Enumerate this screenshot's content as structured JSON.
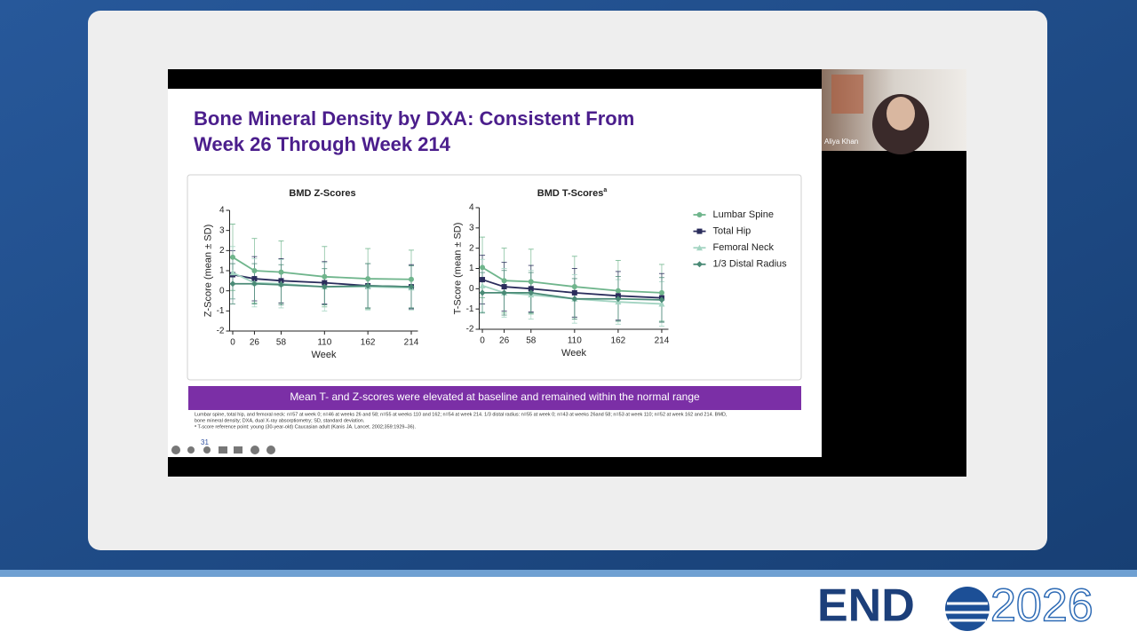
{
  "slide": {
    "title_lines": [
      "Bone Mineral Density by DXA: Consistent From",
      "Week 26 Through Week 214"
    ],
    "banner": "Mean T- and Z-scores were elevated at baseline and remained within the normal range",
    "footnotes": [
      "Lumbar spine, total hip, and femoral neck: n=57 at week 0; n=46 at weeks 26 and 58; n=55 at weeks 110 and 162; n=54 at week 214. 1/3 distal radius: n=55 at week 0; n=43 at weeks 26and 58; n=53 at week 110; n=52 at week 162 and 214. BMD,",
      "bone mineral density; DXA, dual X-ray absorptiometry; SD, standard deviation.",
      "ᵃ T-score reference point: young (30-year-old) Caucasian adult (Kanis JA. Lancet. 2002;359:1929–36)."
    ],
    "page_number": "31"
  },
  "speaker": {
    "name": "Aliya Khan"
  },
  "logo": {
    "left": "END",
    "right": "2026"
  },
  "chart_data": [
    {
      "type": "line",
      "title": "BMD Z-Scores",
      "xlabel": "Week",
      "ylabel": "Z-Score (mean ± SD)",
      "x": [
        0,
        26,
        58,
        110,
        162,
        214
      ],
      "xlim": [
        -8,
        222
      ],
      "xticks": [
        0,
        26,
        58,
        110,
        162,
        214
      ],
      "ylim": [
        -2,
        4
      ],
      "yticks": [
        -2,
        -1,
        0,
        1,
        2,
        3,
        4
      ],
      "series": [
        {
          "name": "Lumbar Spine",
          "color": "#6fb58c",
          "marker": "circle",
          "values": [
            1.67,
            1.0,
            0.93,
            0.7,
            0.6,
            0.57
          ],
          "errors": [
            1.65,
            1.6,
            1.55,
            1.5,
            1.5,
            1.45
          ]
        },
        {
          "name": "Total Hip",
          "color": "#2b2d5c",
          "marker": "square",
          "values": [
            0.8,
            0.6,
            0.5,
            0.4,
            0.25,
            0.2
          ],
          "errors": [
            1.2,
            1.1,
            1.1,
            1.05,
            1.1,
            1.1
          ]
        },
        {
          "name": "Femoral Neck",
          "color": "#a3d4c2",
          "marker": "triangle",
          "values": [
            0.9,
            0.4,
            0.35,
            0.2,
            0.2,
            0.15
          ],
          "errors": [
            1.3,
            1.2,
            1.2,
            1.2,
            1.15,
            1.1
          ]
        },
        {
          "name": "1/3 Distal Radius",
          "color": "#4a8a76",
          "marker": "diamond",
          "values": [
            0.35,
            0.35,
            0.3,
            0.2,
            0.25,
            0.2
          ],
          "errors": [
            1.0,
            1.0,
            1.0,
            0.9,
            1.1,
            1.05
          ]
        }
      ]
    },
    {
      "type": "line",
      "title": "BMD T-Scores",
      "title_sup": "a",
      "xlabel": "Week",
      "ylabel": "T-Score (mean ± SD)",
      "x": [
        0,
        26,
        58,
        110,
        162,
        214
      ],
      "xlim": [
        -8,
        222
      ],
      "xticks": [
        0,
        26,
        58,
        110,
        162,
        214
      ],
      "ylim": [
        -2,
        4
      ],
      "yticks": [
        -2,
        -1,
        0,
        1,
        2,
        3,
        4
      ],
      "legend": "right",
      "series": [
        {
          "name": "Lumbar Spine",
          "color": "#6fb58c",
          "marker": "circle",
          "values": [
            1.05,
            0.4,
            0.35,
            0.1,
            -0.1,
            -0.2
          ],
          "errors": [
            1.5,
            1.6,
            1.6,
            1.5,
            1.5,
            1.4
          ]
        },
        {
          "name": "Total Hip",
          "color": "#2b2d5c",
          "marker": "square",
          "values": [
            0.45,
            0.1,
            0.0,
            -0.2,
            -0.35,
            -0.45
          ],
          "errors": [
            1.2,
            1.2,
            1.15,
            1.2,
            1.2,
            1.2
          ]
        },
        {
          "name": "Femoral Neck",
          "color": "#a3d4c2",
          "marker": "triangle",
          "values": [
            0.15,
            -0.2,
            -0.3,
            -0.5,
            -0.65,
            -0.75
          ],
          "errors": [
            1.3,
            1.2,
            1.2,
            1.2,
            1.1,
            1.1
          ]
        },
        {
          "name": "1/3 Distal Radius",
          "color": "#4a8a76",
          "marker": "diamond",
          "values": [
            -0.2,
            -0.2,
            -0.2,
            -0.5,
            -0.5,
            -0.55
          ],
          "errors": [
            1.0,
            1.1,
            1.0,
            1.0,
            1.1,
            1.1
          ]
        }
      ]
    }
  ]
}
